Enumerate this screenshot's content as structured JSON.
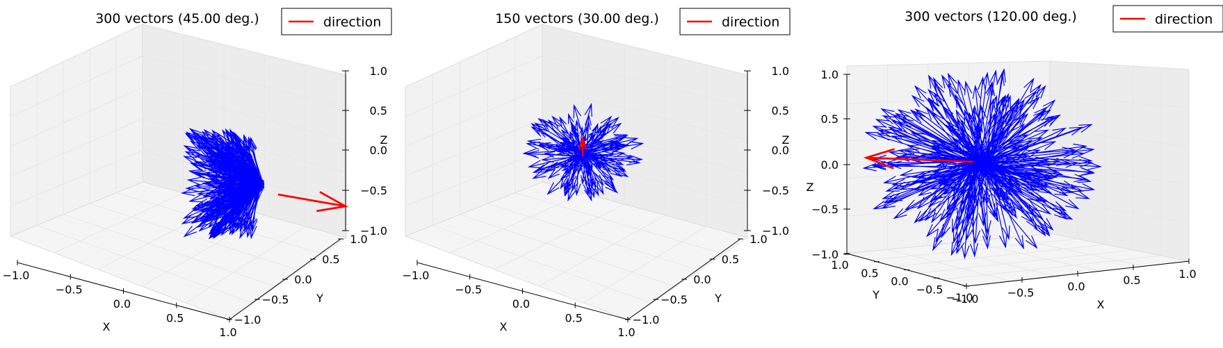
{
  "chart_data": [
    {
      "type": "quiver3d",
      "title": "300 vectors (45.00 deg.)",
      "n_vectors": 300,
      "cone_half_angle_deg": 45.0,
      "legend": [
        "direction"
      ],
      "legend_position": "top-right",
      "xlabel": "X",
      "ylabel": "Y",
      "zlabel": "Z",
      "xlim": [
        -1.0,
        1.0
      ],
      "ylim": [
        -1.0,
        1.0
      ],
      "zlim": [
        -1.0,
        1.0
      ],
      "x_ticks": [
        "−1.0",
        "−0.5",
        "0.0",
        "0.5",
        "1.0"
      ],
      "y_ticks": [
        "−1.0",
        "−0.5",
        "0.0",
        "0.5",
        "1.0"
      ],
      "z_ticks": [
        "−1.0",
        "−0.5",
        "0.0",
        "0.5",
        "1.0"
      ],
      "grid": true,
      "direction_vector": [
        0.7,
        0.0,
        -0.7
      ],
      "vector_color": "#0000ff",
      "direction_color": "#ff0000"
    },
    {
      "type": "quiver3d",
      "title": "150 vectors (30.00 deg.)",
      "n_vectors": 150,
      "cone_half_angle_deg": 30.0,
      "legend": [
        "direction"
      ],
      "legend_position": "top-right",
      "xlabel": "X",
      "ylabel": "Y",
      "zlabel": "Z",
      "xlim": [
        -1.0,
        1.0
      ],
      "ylim": [
        -1.0,
        1.0
      ],
      "zlim": [
        -1.0,
        1.0
      ],
      "x_ticks": [
        "−1.0",
        "−0.5",
        "0.0",
        "0.5",
        "1.0"
      ],
      "y_ticks": [
        "−1.0",
        "−0.5",
        "0.0",
        "0.5",
        "1.0"
      ],
      "z_ticks": [
        "−1.0",
        "−0.5",
        "0.0",
        "0.5",
        "1.0"
      ],
      "grid": true,
      "direction_vector": [
        0.0,
        0.0,
        0.3
      ],
      "vector_color": "#0000ff",
      "direction_color": "#ff0000"
    },
    {
      "type": "quiver3d",
      "title": "300 vectors (120.00 deg.)",
      "n_vectors": 300,
      "cone_half_angle_deg": 120.0,
      "legend": [
        "direction"
      ],
      "legend_position": "top-right",
      "xlabel": "X",
      "ylabel": "Y",
      "zlabel": "Z",
      "xlim": [
        -1.0,
        1.0
      ],
      "ylim": [
        -1.0,
        1.0
      ],
      "zlim": [
        -1.0,
        1.0
      ],
      "x_ticks": [
        "−1.0",
        "−0.5",
        "0.0",
        "0.5",
        "1.0"
      ],
      "y_ticks": [
        "1.0",
        "0.5",
        "0.0",
        "−0.5",
        "−1.0"
      ],
      "z_ticks": [
        "−1.0",
        "−0.5",
        "0.0",
        "0.5",
        "1.0"
      ],
      "grid": true,
      "direction_vector": [
        -1.0,
        0.0,
        0.0
      ],
      "vector_color": "#0000ff",
      "direction_color": "#ff0000"
    }
  ]
}
